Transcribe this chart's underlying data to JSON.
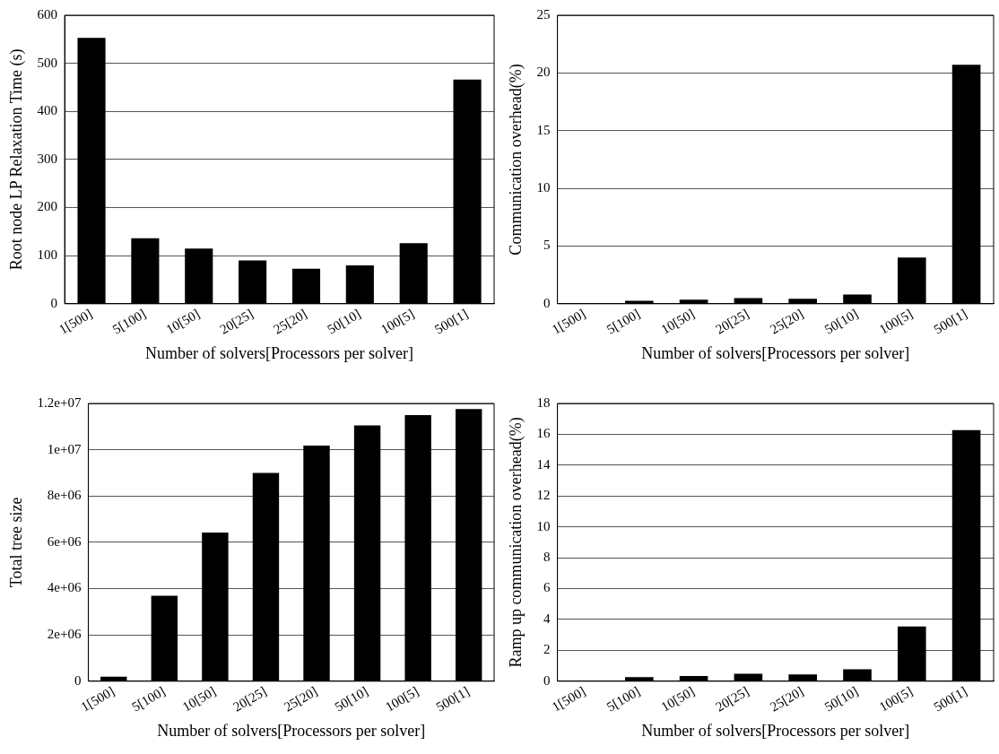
{
  "chart_data": [
    {
      "type": "bar",
      "xlabel": "Number of solvers[Processors per solver]",
      "ylabel": "Root node LP Relaxation Time (s)",
      "categories": [
        "1[500]",
        "5[100]",
        "10[50]",
        "20[25]",
        "25[20]",
        "50[10]",
        "100[5]",
        "500[1]"
      ],
      "color": "#000000",
      "values": [
        553,
        136,
        115,
        90,
        73,
        80,
        126,
        466
      ],
      "ylim": [
        0,
        600
      ],
      "yticks": [
        0,
        100,
        200,
        300,
        400,
        500,
        600
      ],
      "grid": "y"
    },
    {
      "type": "bar",
      "xlabel": "Number of solvers[Processors per solver]",
      "ylabel": "Communication overhead(%)",
      "categories": [
        "1[500]",
        "5[100]",
        "10[50]",
        "20[25]",
        "25[20]",
        "50[10]",
        "100[5]",
        "500[1]"
      ],
      "color": "#000000",
      "values": [
        0,
        0.26,
        0.35,
        0.5,
        0.44,
        0.8,
        4.0,
        20.7
      ],
      "ylim": [
        0,
        25
      ],
      "yticks": [
        0,
        5,
        10,
        15,
        20,
        25
      ],
      "grid": "y"
    },
    {
      "type": "bar",
      "xlabel": "Number of solvers[Processors per solver]",
      "ylabel": "Total tree size",
      "categories": [
        "1[500]",
        "5[100]",
        "10[50]",
        "20[25]",
        "25[20]",
        "50[10]",
        "100[5]",
        "500[1]"
      ],
      "color": "#000000",
      "values": [
        200000,
        3690000,
        6420000,
        9000000,
        10180000,
        11050000,
        11500000,
        11760000
      ],
      "ylim": [
        0,
        12000000
      ],
      "yticks": [
        0,
        {
          "value": 2000000,
          "label": "2e+06"
        },
        {
          "value": 4000000,
          "label": "4e+06"
        },
        {
          "value": 6000000,
          "label": "6e+06"
        },
        {
          "value": 8000000,
          "label": "8e+06"
        },
        {
          "value": 10000000,
          "label": "1e+07"
        },
        {
          "value": 12000000,
          "label": "1.2e+07"
        }
      ],
      "grid": "y"
    },
    {
      "type": "bar",
      "xlabel": "Number of solvers[Processors per solver]",
      "ylabel": "Ramp up communication overhead(%)",
      "categories": [
        "1[500]",
        "5[100]",
        "10[50]",
        "20[25]",
        "25[20]",
        "50[10]",
        "100[5]",
        "500[1]"
      ],
      "color": "#000000",
      "values": [
        0,
        0.27,
        0.34,
        0.48,
        0.44,
        0.78,
        3.55,
        16.27
      ],
      "ylim": [
        0,
        18
      ],
      "yticks": [
        0,
        2,
        4,
        6,
        8,
        10,
        12,
        14,
        16,
        18
      ],
      "grid": "y"
    }
  ]
}
